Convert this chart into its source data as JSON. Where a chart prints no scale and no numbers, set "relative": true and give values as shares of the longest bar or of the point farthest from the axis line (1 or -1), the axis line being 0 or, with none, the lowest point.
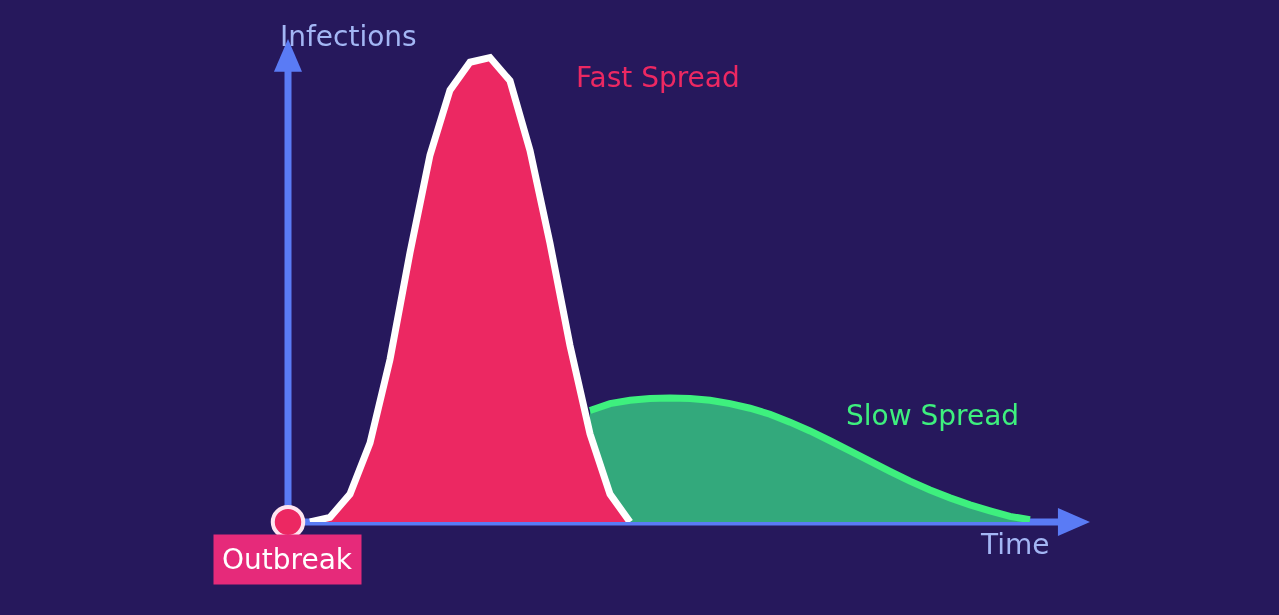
{
  "chart_data": {
    "type": "area",
    "relative": true,
    "xlabel": "Time",
    "ylabel": "Infections",
    "categories": [
      null,
      null,
      null,
      null,
      null,
      null,
      null,
      null,
      null,
      null,
      null,
      null,
      null,
      null,
      null,
      null,
      null,
      null,
      null,
      null,
      null,
      null,
      null,
      null,
      null,
      null,
      null,
      null,
      null,
      null,
      null,
      null,
      null,
      null,
      null,
      null,
      null
    ],
    "series": [
      {
        "name": "Fast Spread",
        "color": "#ec2862",
        "values": [
          0,
          0.01,
          0.06,
          0.17,
          0.35,
          0.58,
          0.79,
          0.93,
          0.99,
          1.0,
          0.95,
          0.8,
          0.6,
          0.38,
          0.19,
          0.06,
          0,
          null,
          null,
          null,
          null,
          null,
          null,
          null,
          null,
          null,
          null,
          null,
          null,
          null,
          null,
          null,
          null,
          null,
          null,
          null,
          null
        ]
      },
      {
        "name": "Slow Spread",
        "color": "#33a97c",
        "values": [
          null,
          null,
          null,
          null,
          null,
          null,
          null,
          null,
          null,
          null,
          null,
          null,
          null,
          null,
          0.24,
          0.255,
          0.262,
          0.266,
          0.267,
          0.266,
          0.262,
          0.255,
          0.245,
          0.232,
          0.215,
          0.196,
          0.175,
          0.153,
          0.131,
          0.109,
          0.088,
          0.069,
          0.052,
          0.037,
          0.024,
          0.012,
          0.005
        ]
      }
    ],
    "annotations": [
      "Outbreak"
    ],
    "grid": false,
    "legend": false
  }
}
